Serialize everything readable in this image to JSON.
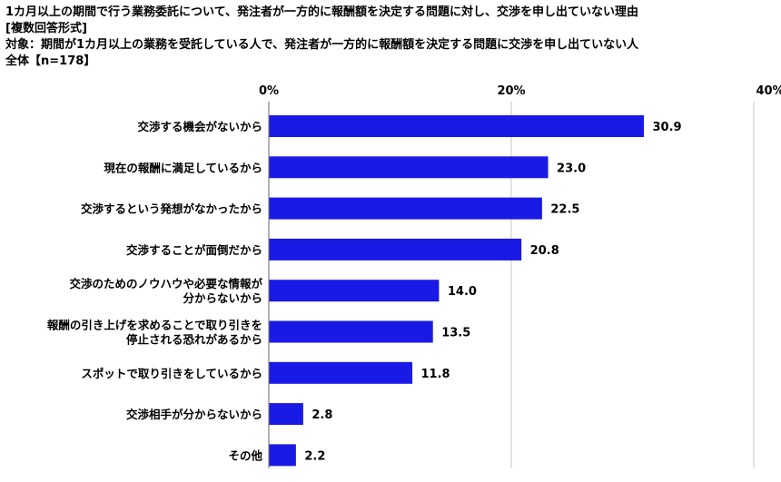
{
  "header": {
    "title": "1カ月以上の期間で行う業務委託について、発注者が一方的に報酬額を決定する問題に対し、交渉を申し出ていない理由",
    "format": "[複数回答形式]",
    "target": "対象：期間が1カ月以上の業務を受託している人で、発注者が一方的に報酬額を決定する問題に交渉を申し出ていない人",
    "base": "全体【n=178】"
  },
  "colors": {
    "bar": "#1a1ae6",
    "grid": "#c8c8c8",
    "axis": "#808080"
  },
  "chart_data": {
    "type": "bar",
    "orientation": "horizontal",
    "categories": [
      [
        "交渉する機会がないから"
      ],
      [
        "現在の報酬に満足しているから"
      ],
      [
        "交渉するという発想がなかったから"
      ],
      [
        "交渉することが面倒だから"
      ],
      [
        "交渉のためのノウハウや必要な情報が",
        "分からないから"
      ],
      [
        "報酬の引き上げを求めることで取り引きを",
        "停止される恐れがあるから"
      ],
      [
        "スポットで取り引きをしているから"
      ],
      [
        "交渉相手が分からないから"
      ],
      [
        "その他"
      ]
    ],
    "values": [
      30.9,
      23.0,
      22.5,
      20.8,
      14.0,
      13.5,
      11.8,
      2.8,
      2.2
    ],
    "value_labels": [
      "30.9",
      "23.0",
      "22.5",
      "20.8",
      "14.0",
      "13.5",
      "11.8",
      "2.8",
      "2.2"
    ],
    "xlim": [
      0,
      40
    ],
    "ticks": [
      0,
      20,
      40
    ],
    "tick_labels": [
      "0%",
      "20%",
      "40%"
    ],
    "grid": true,
    "legend": "none"
  }
}
